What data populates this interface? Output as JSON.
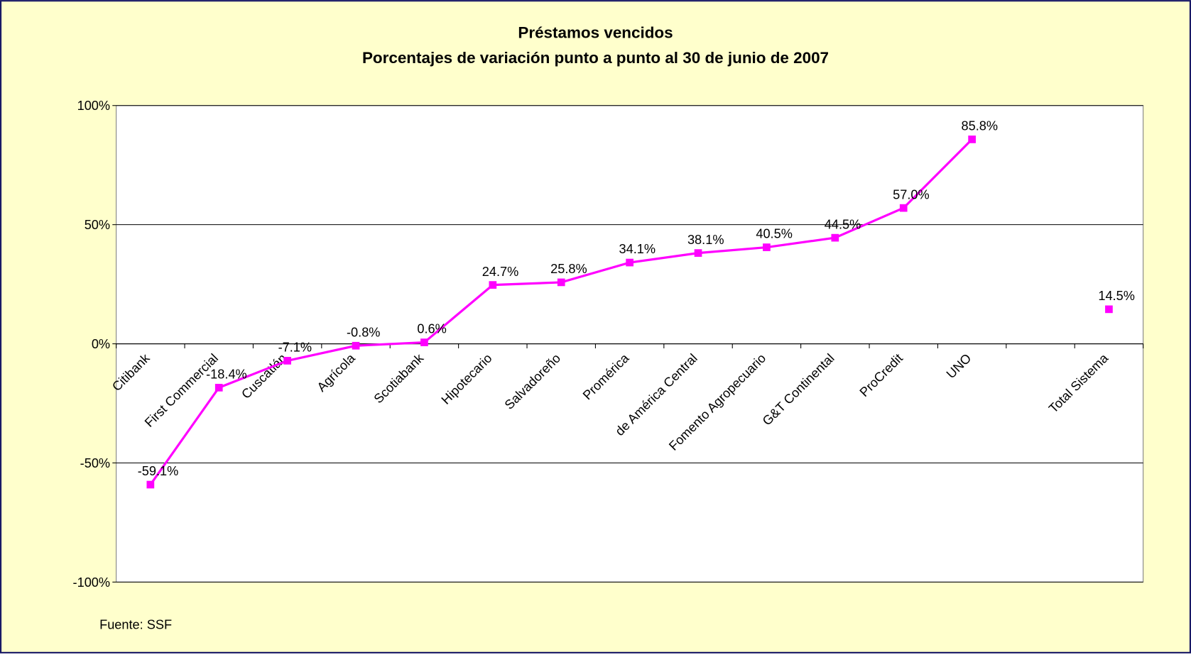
{
  "chart_data": {
    "type": "line",
    "title": "Préstamos vencidos",
    "subtitle": "Porcentajes de variación punto a punto al 30 de junio de 2007",
    "source": "Fuente: SSF",
    "categories": [
      "Citibank",
      "First Commercial",
      "Cuscatlán",
      "Agrícola",
      "Scotiabank",
      "Hipotecario",
      "Salvadoreño",
      "Promérica",
      "de América Central",
      "Fomento Agropecuario",
      "G&T Continental",
      "ProCredit",
      "UNO",
      null,
      "Total Sistema"
    ],
    "series": [
      {
        "name": "Préstamos vencidos",
        "color": "#ff00ff",
        "values": [
          -59.1,
          -18.4,
          -7.1,
          -0.8,
          0.6,
          24.7,
          25.8,
          34.1,
          38.1,
          40.5,
          44.5,
          57.0,
          85.8,
          null,
          14.5
        ],
        "value_labels": [
          "-59.1%",
          "-18.4%",
          "-7.1%",
          "-0.8%",
          "0.6%",
          "24.7%",
          "25.8%",
          "34.1%",
          "38.1%",
          "40.5%",
          "44.5%",
          "57.0%",
          "85.8%",
          null,
          "14.5%"
        ]
      }
    ],
    "ylim": [
      -100,
      100
    ],
    "yticks": [
      {
        "value": -100,
        "label": "-100%"
      },
      {
        "value": -50,
        "label": "-50%"
      },
      {
        "value": 0,
        "label": "0%"
      },
      {
        "value": 50,
        "label": "50%"
      },
      {
        "value": 100,
        "label": "100%"
      }
    ],
    "grid": true
  }
}
